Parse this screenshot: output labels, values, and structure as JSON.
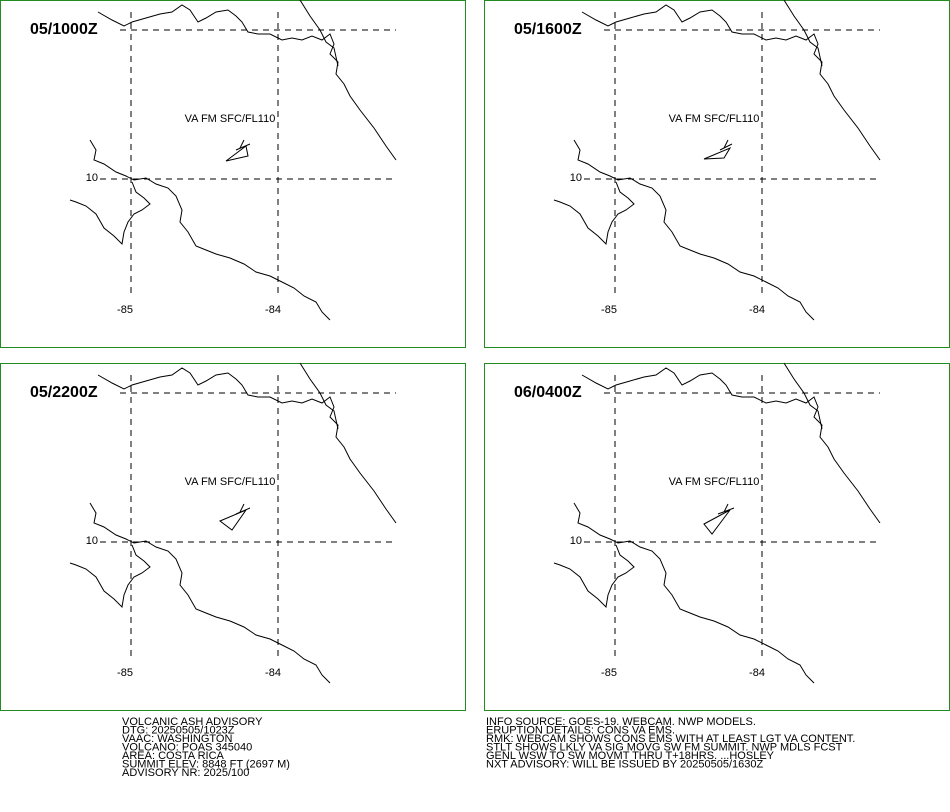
{
  "panels": [
    {
      "time": "05/1000Z",
      "label": "VA FM SFC/FL110",
      "lat_label": "10",
      "lon_labels": [
        "-85",
        "-84"
      ]
    },
    {
      "time": "05/1600Z",
      "label": "VA FM SFC/FL110",
      "lat_label": "10",
      "lon_labels": [
        "-85",
        "-84"
      ]
    },
    {
      "time": "05/2200Z",
      "label": "VA FM SFC/FL110",
      "lat_label": "10",
      "lon_labels": [
        "-85",
        "-84"
      ]
    },
    {
      "time": "06/0400Z",
      "label": "VA FM SFC/FL110",
      "lat_label": "10",
      "lon_labels": [
        "-85",
        "-84"
      ]
    }
  ],
  "advisory_left": [
    "VOLCANIC ASH ADVISORY",
    "DTG: 20250505/1023Z",
    "VAAC: WASHINGTON",
    "VOLCANO: POAS 345040",
    "AREA: COSTA RICA",
    "SUMMIT ELEV: 8848 FT (2697 M)",
    "ADVISORY NR: 2025/100"
  ],
  "advisory_right": [
    "INFO SOURCE: GOES-19. WEBCAM. NWP MODELS.",
    "ERUPTION DETAILS: CONS VA EMS.",
    "RMK: WEBCAM SHOWS CONS EMS WITH AT LEAST LGT VA CONTENT.",
    "STLT SHOWS LKLY VA SIG MOVG SW FM SUMMIT. NWP MDLS FCST",
    "GENL WSW TO SW MOVMT THRU T+18HRS. ...HOSLEY",
    "NXT ADVISORY: WILL BE ISSUED BY 20250505/1630Z"
  ]
}
